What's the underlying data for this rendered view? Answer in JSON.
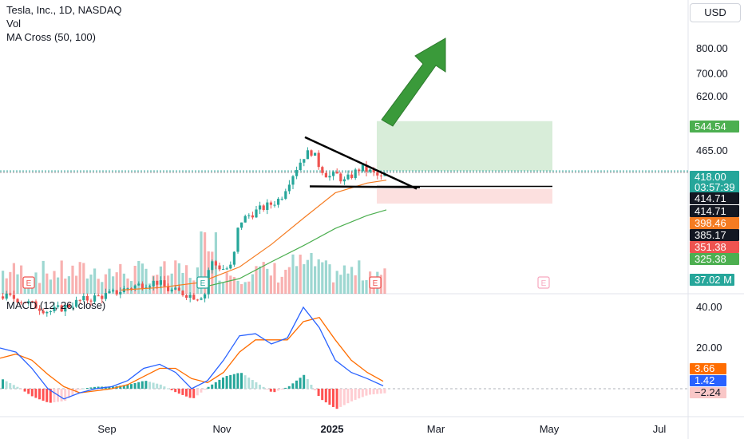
{
  "legend": {
    "symbol": "Tesla, Inc., 1D, NASDAQ",
    "vol": "Vol",
    "ma_cross": "MA Cross (50, 100)",
    "macd": "MACD (12, 26, close)"
  },
  "currency_button": "USD",
  "colors": {
    "up": "#26a69a",
    "down": "#ef5350",
    "ma50": "#f57c22",
    "ma100": "#4caf50",
    "macd_line": "#2962ff",
    "signal_line": "#ff6d00",
    "arrow": "#3a9a3a"
  },
  "chart_data": [
    {
      "type": "candlestick",
      "title": "Tesla, Inc., 1D, NASDAQ",
      "y_scale": "log",
      "ylim": [
        220,
        930
      ],
      "y_ticks": [
        "800.00",
        "700.00",
        "620.00",
        "465.00"
      ],
      "x_ticks": [
        "Sep",
        "Nov",
        "2025",
        "Mar",
        "May",
        "Jul"
      ],
      "price_tags": [
        {
          "label": "544.54",
          "value": 544.54,
          "bg": "#4caf50",
          "fg": "#ffffff"
        },
        {
          "label": "418.00",
          "value": 418.0,
          "bg": "#26a69a",
          "fg": "#ffffff",
          "sub": "03:57:39"
        },
        {
          "label": "414.71",
          "value": 414.71,
          "bg": "#131722",
          "fg": "#ffffff"
        },
        {
          "label": "414.71",
          "value": 414.71,
          "bg": "#131722",
          "fg": "#ffffff",
          "stack": 1
        },
        {
          "label": "398.46",
          "value": 398.46,
          "bg": "#f57c22",
          "fg": "#ffffff"
        },
        {
          "label": "385.17",
          "value": 385.17,
          "bg": "#131722",
          "fg": "#ffffff"
        },
        {
          "label": "351.38",
          "value": 351.38,
          "bg": "#ef5350",
          "fg": "#ffffff"
        },
        {
          "label": "325.38",
          "value": 325.38,
          "bg": "#4caf50",
          "fg": "#ffffff"
        }
      ],
      "volume_tag": "37.02 M",
      "price_path": [
        {
          "x": 0,
          "c": 215
        },
        {
          "x": 20,
          "c": 212
        },
        {
          "x": 40,
          "c": 205
        },
        {
          "x": 60,
          "c": 198
        },
        {
          "x": 80,
          "c": 203
        },
        {
          "x": 100,
          "c": 210
        },
        {
          "x": 120,
          "c": 214
        },
        {
          "x": 140,
          "c": 218
        },
        {
          "x": 160,
          "c": 225
        },
        {
          "x": 180,
          "c": 230
        },
        {
          "x": 195,
          "c": 232
        },
        {
          "x": 210,
          "c": 222
        },
        {
          "x": 230,
          "c": 218
        },
        {
          "x": 245,
          "c": 214
        },
        {
          "x": 255,
          "c": 218
        },
        {
          "x": 260,
          "c": 250
        },
        {
          "x": 265,
          "c": 258
        },
        {
          "x": 270,
          "c": 252
        },
        {
          "x": 280,
          "c": 248
        },
        {
          "x": 290,
          "c": 252
        },
        {
          "x": 295,
          "c": 300
        },
        {
          "x": 300,
          "c": 320
        },
        {
          "x": 310,
          "c": 330
        },
        {
          "x": 320,
          "c": 338
        },
        {
          "x": 330,
          "c": 345
        },
        {
          "x": 340,
          "c": 352
        },
        {
          "x": 350,
          "c": 362
        },
        {
          "x": 360,
          "c": 395
        },
        {
          "x": 370,
          "c": 425
        },
        {
          "x": 380,
          "c": 455
        },
        {
          "x": 390,
          "c": 465
        },
        {
          "x": 395,
          "c": 440
        },
        {
          "x": 400,
          "c": 425
        },
        {
          "x": 410,
          "c": 405
        },
        {
          "x": 420,
          "c": 410
        },
        {
          "x": 430,
          "c": 395
        },
        {
          "x": 440,
          "c": 410
        },
        {
          "x": 450,
          "c": 425
        },
        {
          "x": 460,
          "c": 418
        },
        {
          "x": 470,
          "c": 408
        },
        {
          "x": 478,
          "c": 400
        },
        {
          "x": 484,
          "c": 418
        }
      ],
      "ma50_path": [
        {
          "x": 152,
          "c": 222
        },
        {
          "x": 200,
          "c": 225
        },
        {
          "x": 250,
          "c": 231
        },
        {
          "x": 300,
          "c": 251
        },
        {
          "x": 340,
          "c": 283
        },
        {
          "x": 380,
          "c": 325
        },
        {
          "x": 420,
          "c": 372
        },
        {
          "x": 460,
          "c": 392
        },
        {
          "x": 484,
          "c": 398
        }
      ],
      "ma100_path": [
        {
          "x": 252,
          "c": 225
        },
        {
          "x": 300,
          "c": 236
        },
        {
          "x": 340,
          "c": 258
        },
        {
          "x": 380,
          "c": 281
        },
        {
          "x": 420,
          "c": 308
        },
        {
          "x": 460,
          "c": 330
        },
        {
          "x": 484,
          "c": 340
        }
      ],
      "pattern_levels": {
        "upper_start": 500,
        "upper_end": 400,
        "support": 385,
        "target": 544.54,
        "stop": 351.38
      }
    },
    {
      "type": "line",
      "title": "MACD (12, 26, close)",
      "y_ticks": [
        "40.00",
        "20.00"
      ],
      "ylim": [
        -15,
        45
      ],
      "series": [
        {
          "name": "MACD",
          "x": [
            0,
            20,
            40,
            60,
            80,
            100,
            120,
            140,
            160,
            180,
            200,
            220,
            240,
            260,
            280,
            300,
            320,
            340,
            360,
            380,
            400,
            420,
            440,
            460,
            480
          ],
          "values": [
            20,
            18,
            10,
            0,
            -5,
            -2,
            0,
            1,
            4,
            10,
            12,
            8,
            0,
            4,
            14,
            26,
            27,
            22,
            25,
            40,
            30,
            14,
            8,
            5,
            1.42
          ]
        },
        {
          "name": "Signal",
          "x": [
            0,
            20,
            40,
            60,
            80,
            100,
            120,
            140,
            160,
            180,
            200,
            220,
            240,
            260,
            280,
            300,
            320,
            340,
            360,
            380,
            400,
            420,
            440,
            460,
            480
          ],
          "values": [
            15,
            17,
            14,
            7,
            1,
            -2,
            -1,
            0,
            2,
            6,
            10,
            10,
            5,
            3,
            8,
            18,
            24,
            24,
            24,
            33,
            35,
            24,
            14,
            8,
            3.66
          ]
        }
      ],
      "value_tags": [
        {
          "label": "3.66",
          "bg": "#ff6d00"
        },
        {
          "label": "1.42",
          "bg": "#2962ff"
        },
        {
          "label": "−2.24",
          "bg": "#f9c7c7"
        }
      ]
    }
  ]
}
